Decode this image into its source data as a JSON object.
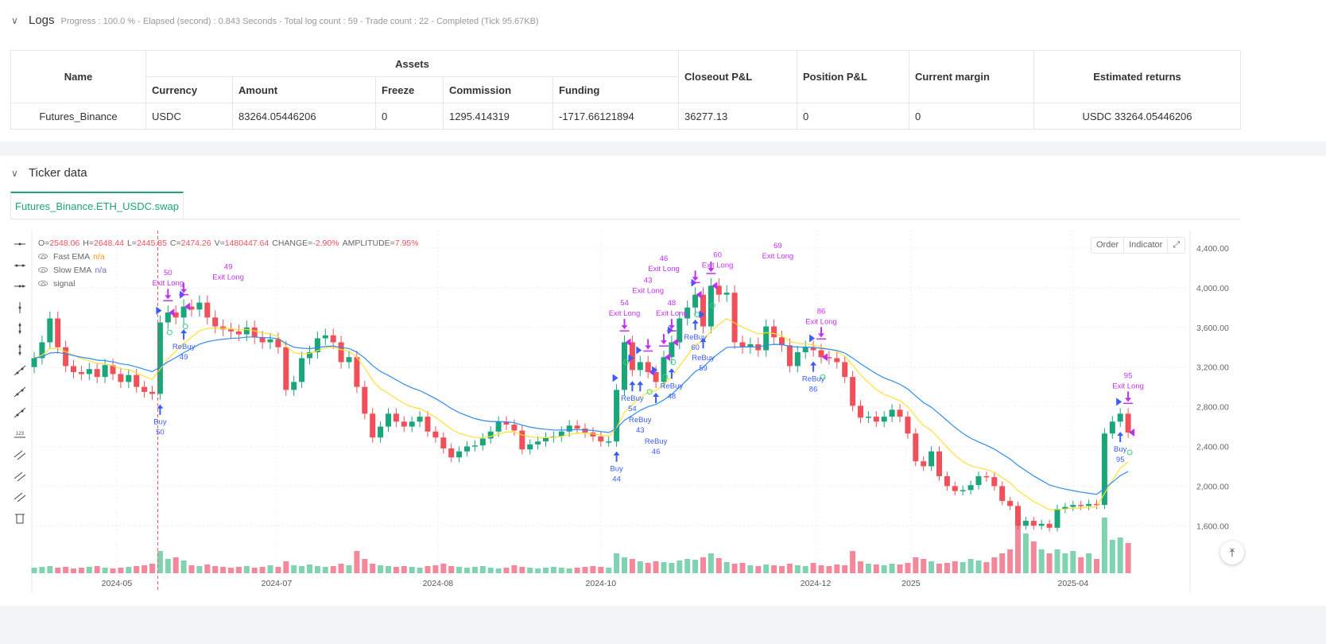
{
  "logs": {
    "title": "Logs",
    "summary": "Progress : 100.0 % - Elapsed (second) : 0.843  Seconds - Total log count : 59 - Trade count : 22 - Completed (Tick 95.67KB)"
  },
  "table": {
    "headers": {
      "name": "Name",
      "assets": "Assets",
      "closeout": "Closeout P&L",
      "position": "Position P&L",
      "margin": "Current margin",
      "returns": "Estimated returns"
    },
    "subheaders": [
      "Currency",
      "Amount",
      "Freeze",
      "Commission",
      "Funding"
    ],
    "row": {
      "name": "Futures_Binance",
      "currency": "USDC",
      "amount": "83264.05446206",
      "freeze": "0",
      "commission": "1295.414319",
      "funding": "-1717.66121894",
      "closeout": "36277.13",
      "position": "0",
      "margin": "0",
      "returns": "USDC 33264.05446206"
    }
  },
  "ticker": {
    "title": "Ticker data",
    "tab": "Futures_Binance.ETH_USDC.swap"
  },
  "ohlc": {
    "o_label": "O=",
    "o": "2548.06",
    "h_label": "H=",
    "h": "2648.44",
    "l_label": "L=",
    "l": "2445.85",
    "c_label": "C=",
    "c": "2474.26",
    "v_label": "V=",
    "v": "1480447.64",
    "change_label": "CHANGE=",
    "change": "-2.90%",
    "amp_label": "AMPLITUDE=",
    "amp": "7.95%"
  },
  "legend": [
    {
      "name": "Fast EMA",
      "value": "n/a",
      "color": "#ff9900"
    },
    {
      "name": "Slow EMA",
      "value": "n/a",
      "color": "#7b5fc7"
    },
    {
      "name": "signal",
      "value": ""
    }
  ],
  "chart_buttons": {
    "order": "Order",
    "indicator": "Indicator"
  },
  "colors": {
    "up": "#1aa57a",
    "down": "#f0505a",
    "up_vol": "#7fd3b0",
    "down_vol": "#f5879a",
    "fast_ema": "#ffe033",
    "slow_ema": "#2e8cf0",
    "buy": "#3b5bf5",
    "exit": "#c030f0",
    "crosshair": "#f0505a"
  },
  "chart_data": {
    "type": "candlestick",
    "y_ticks": [
      "1,600.00",
      "2,000.00",
      "2,400.00",
      "2,800.00",
      "3,200.00",
      "3,600.00",
      "4,000.00",
      "4,400.00"
    ],
    "y_tick_values": [
      1600,
      2000,
      2400,
      2800,
      3200,
      3600,
      4000,
      4400
    ],
    "x_ticks": [
      {
        "label": "2024-05",
        "bar": 10.5
      },
      {
        "label": "2024-07",
        "bar": 30.8
      },
      {
        "label": "2024-08",
        "bar": 51.3
      },
      {
        "label": "2024-10",
        "bar": 72
      },
      {
        "label": "2024-12",
        "bar": 99.3
      },
      {
        "label": "2025",
        "bar": 111.4
      },
      {
        "label": "2025-04",
        "bar": 132
      }
    ],
    "open_first": 3200,
    "close": [
      3290,
      3450,
      3690,
      3400,
      3210,
      3150,
      3130,
      3180,
      3100,
      3220,
      3130,
      3050,
      3120,
      3000,
      2950,
      2930,
      3650,
      3750,
      3700,
      3810,
      3780,
      3850,
      3700,
      3610,
      3580,
      3560,
      3530,
      3600,
      3500,
      3450,
      3480,
      3400,
      2970,
      3050,
      3290,
      3350,
      3490,
      3520,
      3450,
      3250,
      3300,
      3000,
      2730,
      2490,
      2600,
      2730,
      2650,
      2600,
      2650,
      2700,
      2550,
      2490,
      2380,
      2290,
      2350,
      2400,
      2410,
      2480,
      2550,
      2650,
      2620,
      2560,
      2370,
      2420,
      2450,
      2490,
      2500,
      2550,
      2610,
      2580,
      2540,
      2500,
      2450,
      2450,
      2970,
      3450,
      3170,
      3250,
      3150,
      3050,
      3300,
      3450,
      3690,
      3800,
      3930,
      3610,
      4020,
      3930,
      3950,
      3450,
      3400,
      3430,
      3370,
      3610,
      3500,
      3420,
      3210,
      3350,
      3400,
      3370,
      3300,
      3290,
      3250,
      3100,
      2810,
      2690,
      2700,
      2650,
      2700,
      2770,
      2700,
      2530,
      2250,
      2200,
      2350,
      2100,
      2000,
      1950,
      1960,
      2010,
      2100,
      2090,
      2000,
      1850,
      1800,
      1600,
      1650,
      1600,
      1620,
      1580,
      1770,
      1790,
      1810,
      1800,
      1820,
      1810,
      2530,
      2650,
      2730,
      2540
    ],
    "volume": [
      700,
      800,
      900,
      700,
      800,
      600,
      700,
      800,
      900,
      700,
      600,
      700,
      800,
      900,
      1000,
      1200,
      2800,
      1800,
      2000,
      1600,
      1000,
      900,
      1100,
      900,
      800,
      700,
      800,
      900,
      700,
      800,
      1000,
      800,
      1500,
      1000,
      900,
      1100,
      900,
      800,
      900,
      1200,
      1000,
      2800,
      1800,
      1200,
      1000,
      900,
      800,
      900,
      800,
      700,
      900,
      1000,
      1200,
      900,
      800,
      700,
      800,
      900,
      700,
      600,
      700,
      1000,
      800,
      700,
      600,
      700,
      800,
      700,
      600,
      700,
      800,
      900,
      800,
      700,
      2500,
      2000,
      1800,
      1500,
      1300,
      1500,
      1400,
      1300,
      1600,
      1800,
      1700,
      2000,
      2500,
      1900,
      1400,
      1200,
      1300,
      1000,
      900,
      1100,
      1000,
      900,
      1200,
      1000,
      900,
      1300,
      1000,
      900,
      1100,
      1000,
      2800,
      1500,
      1200,
      1100,
      1000,
      1200,
      1100,
      1300,
      2000,
      1800,
      1500,
      1200,
      1300,
      1500,
      1400,
      1800,
      1600,
      1400,
      2000,
      2500,
      3000,
      6500,
      5000,
      4000,
      3000,
      2500,
      3000,
      2500,
      2800,
      2000,
      2500,
      1800,
      7000,
      4200,
      4500,
      3800
    ],
    "fast_ema_period": 10,
    "slow_ema_period": 20,
    "crosshair_bar": 15.7,
    "markers": [
      {
        "bar": 16,
        "kind": "buy",
        "text": "Buy",
        "id": "50"
      },
      {
        "bar": 17,
        "kind": "exit",
        "text": "Exit Long",
        "id": "50"
      },
      {
        "bar": 19,
        "kind": "buy",
        "text": "ReBuy",
        "id": "49"
      },
      {
        "bar": 19,
        "kind": "exit",
        "text": "Exit Long",
        "id": "49"
      },
      {
        "bar": 74,
        "kind": "buy",
        "text": "Buy",
        "id": "44"
      },
      {
        "bar": 75,
        "kind": "exit",
        "text": "Exit Long",
        "id": "54"
      },
      {
        "bar": 76,
        "kind": "buy",
        "text": "ReBuy",
        "id": "54"
      },
      {
        "bar": 77,
        "kind": "buy",
        "text": "ReBuy",
        "id": "43"
      },
      {
        "bar": 78,
        "kind": "exit",
        "text": "Exit Long",
        "id": "43"
      },
      {
        "bar": 79,
        "kind": "buy",
        "text": "ReBuy",
        "id": "46"
      },
      {
        "bar": 80,
        "kind": "exit",
        "text": "Exit Long",
        "id": "46"
      },
      {
        "bar": 81,
        "kind": "buy",
        "text": "ReBuy",
        "id": "48"
      },
      {
        "bar": 81,
        "kind": "exit",
        "text": "Exit Long",
        "id": "48"
      },
      {
        "bar": 84,
        "kind": "buy",
        "text": "ReBuy",
        "id": "60"
      },
      {
        "bar": 84,
        "kind": "exit",
        "text": "Exit Long",
        "id": "60"
      },
      {
        "bar": 85,
        "kind": "buy",
        "text": "ReBuy",
        "id": "59"
      },
      {
        "bar": 86,
        "kind": "exit",
        "text": "Exit Long",
        "id": "69"
      },
      {
        "bar": 99,
        "kind": "buy",
        "text": "ReBuy",
        "id": "86"
      },
      {
        "bar": 100,
        "kind": "exit",
        "text": "Exit Long",
        "id": "86"
      },
      {
        "bar": 138,
        "kind": "buy",
        "text": "Buy",
        "id": "95"
      },
      {
        "bar": 139,
        "kind": "exit",
        "text": "Exit Long",
        "id": "95"
      }
    ]
  },
  "toolbar_icons": [
    "horizontal-line-icon",
    "horizontal-ray-icon",
    "horizontal-segment-icon",
    "vertical-line-icon",
    "vertical-ray-icon",
    "vertical-segment-icon",
    "trend-line-icon",
    "ray-line-icon",
    "segment-icon",
    "price-label-icon",
    "parallel-channel-icon",
    "multi-line-icon",
    "fib-lines-icon",
    "trash-icon"
  ]
}
